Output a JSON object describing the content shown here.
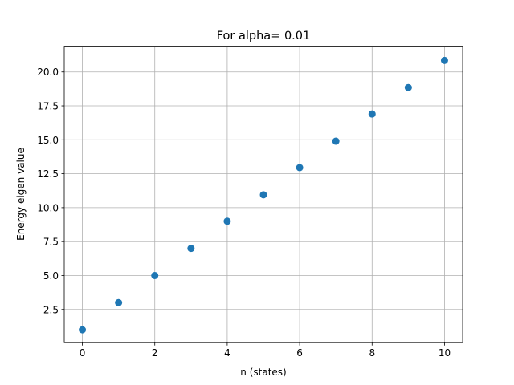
{
  "chart_data": {
    "type": "scatter",
    "title": "For alpha= 0.01",
    "xlabel": "n (states)",
    "ylabel": "Energy eigen value",
    "x": [
      0,
      1,
      2,
      3,
      4,
      5,
      6,
      7,
      8,
      9,
      10
    ],
    "y": [
      1.0,
      3.0,
      5.0,
      7.0,
      9.0,
      10.95,
      12.95,
      14.9,
      16.9,
      18.85,
      20.85
    ],
    "xlim": [
      -0.5,
      10.5
    ],
    "ylim": [
      0.05,
      21.9
    ],
    "xticks": [
      0,
      2,
      4,
      6,
      8,
      10
    ],
    "xtick_labels": [
      "0",
      "2",
      "4",
      "6",
      "8",
      "10"
    ],
    "yticks": [
      2.5,
      5.0,
      7.5,
      10.0,
      12.5,
      15.0,
      17.5,
      20.0
    ],
    "ytick_labels": [
      "2.5",
      "5.0",
      "7.5",
      "10.0",
      "12.5",
      "15.0",
      "17.5",
      "20.0"
    ],
    "grid": true,
    "marker_color": "#1f77b4"
  }
}
